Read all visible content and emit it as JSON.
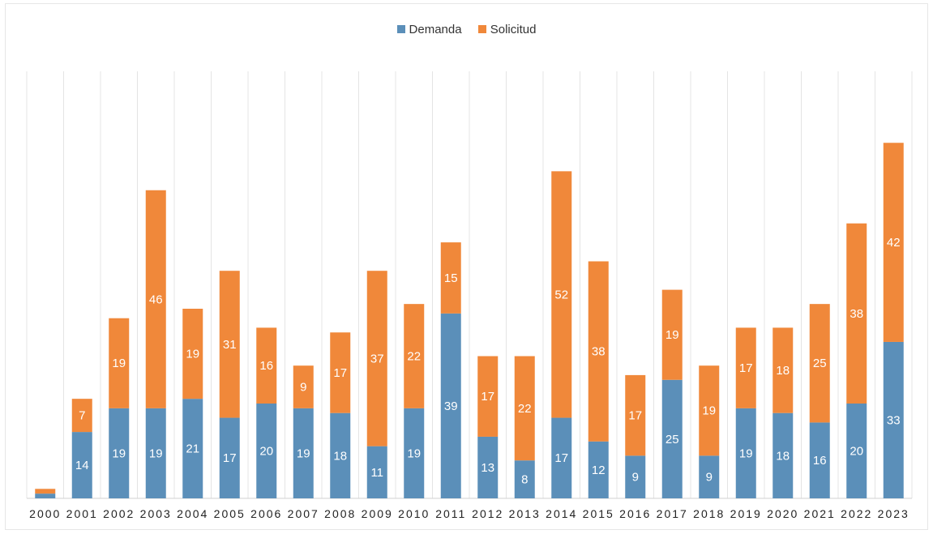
{
  "chart_data": {
    "type": "bar",
    "stacked": true,
    "categories": [
      "2000",
      "2001",
      "2002",
      "2003",
      "2004",
      "2005",
      "2006",
      "2007",
      "2008",
      "2009",
      "2010",
      "2011",
      "2012",
      "2013",
      "2014",
      "2015",
      "2016",
      "2017",
      "2018",
      "2019",
      "2020",
      "2021",
      "2022",
      "2023"
    ],
    "series": [
      {
        "name": "Demanda",
        "color": "#5b8fb9",
        "values": [
          1,
          14,
          19,
          19,
          21,
          17,
          20,
          19,
          18,
          11,
          19,
          39,
          13,
          8,
          17,
          12,
          9,
          25,
          9,
          19,
          18,
          16,
          20,
          33
        ]
      },
      {
        "name": "Solicitud",
        "color": "#f0883a",
        "values": [
          1,
          7,
          19,
          46,
          19,
          31,
          16,
          9,
          17,
          37,
          22,
          15,
          17,
          22,
          52,
          38,
          17,
          19,
          19,
          17,
          18,
          25,
          38,
          42
        ]
      }
    ],
    "data_labels": [
      [
        "",
        14,
        19,
        19,
        21,
        17,
        20,
        19,
        18,
        11,
        19,
        39,
        13,
        8,
        17,
        12,
        9,
        25,
        9,
        19,
        18,
        16,
        20,
        33
      ],
      [
        "",
        7,
        19,
        46,
        19,
        31,
        16,
        9,
        17,
        37,
        22,
        15,
        17,
        22,
        52,
        38,
        17,
        19,
        19,
        17,
        18,
        25,
        38,
        42
      ]
    ],
    "ylim": [
      0,
      78
    ],
    "grid": "vertical",
    "legend": "top-center"
  }
}
